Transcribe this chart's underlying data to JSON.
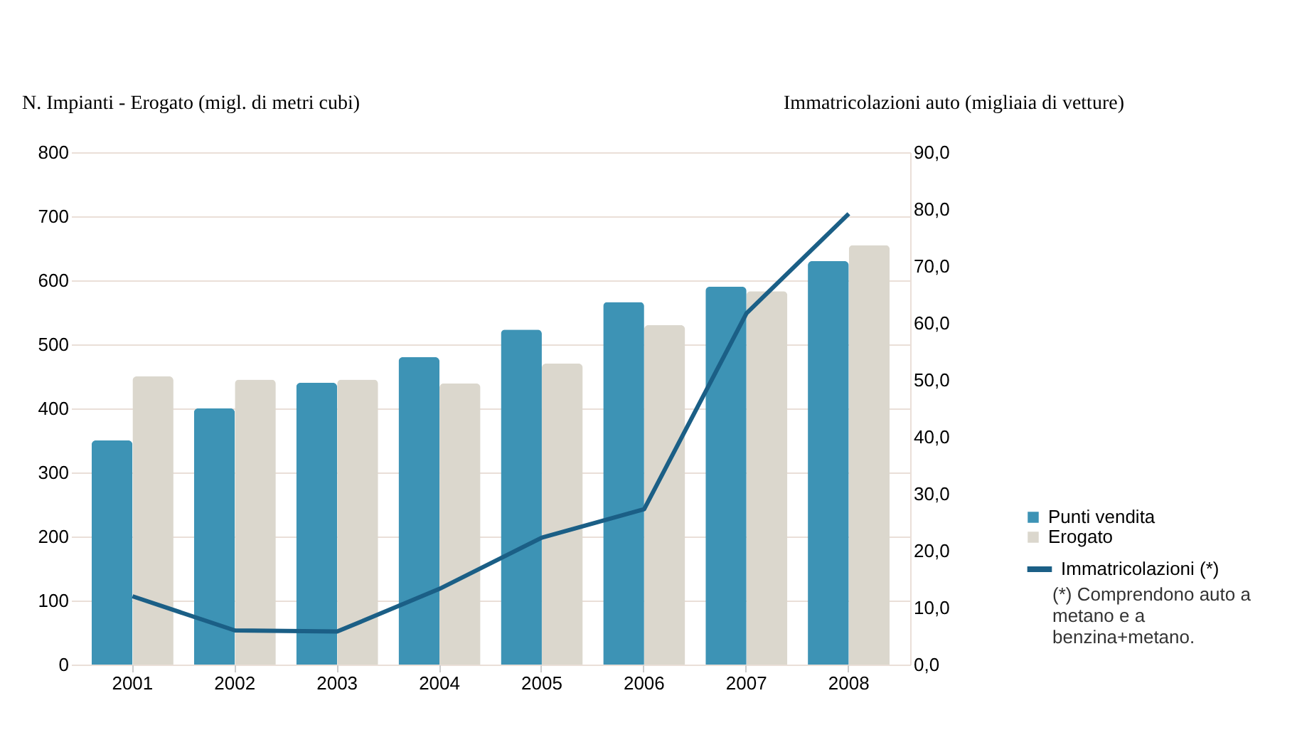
{
  "chart_data": {
    "type": "bar",
    "ylabel": "N. Impianti - Erogato (migl. di metri cubi)",
    "y2label": "Immatricolazioni auto (migliaia di vetture)",
    "categories": [
      "2001",
      "2002",
      "2003",
      "2004",
      "2005",
      "2006",
      "2007",
      "2008"
    ],
    "series": [
      {
        "name": "Punti vendita",
        "color": "#3d93b5",
        "values": [
          350,
          400,
          440,
          480,
          523,
          566,
          590,
          630
        ]
      },
      {
        "name": "Erogato",
        "color": "#dbd7cd",
        "values": [
          450,
          445,
          445,
          439,
          470,
          530,
          583,
          655
        ]
      },
      {
        "name": "Immatricolazioni (*)",
        "type": "line",
        "axis": "y2",
        "color": "#1b5f86",
        "values": [
          12.0,
          6.0,
          5.8,
          13.3,
          22.3,
          27.3,
          61.7,
          79.2
        ]
      }
    ],
    "ylim": [
      0,
      800
    ],
    "yticks": [
      0,
      100,
      200,
      300,
      400,
      500,
      600,
      700,
      800
    ],
    "y2lim": [
      0,
      90
    ],
    "y2ticks": [
      {
        "value": 0,
        "label": "0,0"
      },
      {
        "value": 10,
        "label": "10,0"
      },
      {
        "value": 20,
        "label": "20,0"
      },
      {
        "value": 30,
        "label": "30,0"
      },
      {
        "value": 40,
        "label": "40,0"
      },
      {
        "value": 50,
        "label": "50,0"
      },
      {
        "value": 60,
        "label": "60,0"
      },
      {
        "value": 70,
        "label": "70,0"
      },
      {
        "value": 80,
        "label": "80,0"
      },
      {
        "value": 90,
        "label": "90,0"
      }
    ],
    "grid": "y",
    "legend": "right",
    "annotations": [
      "(*) Comprendono auto a metano e a benzina+metano."
    ]
  }
}
